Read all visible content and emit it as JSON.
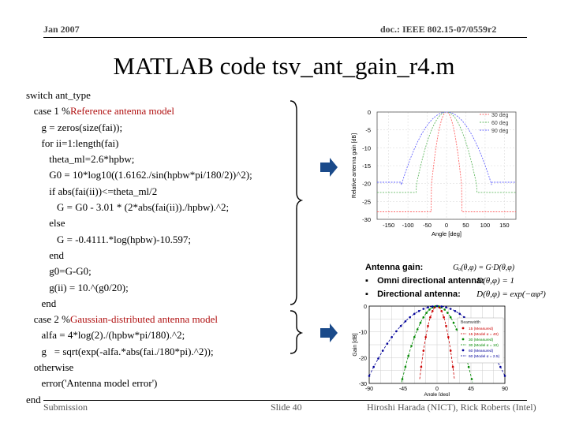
{
  "header": {
    "date": "Jan 2007",
    "doc": "doc.: IEEE 802.15-07/0559r2"
  },
  "title": "MATLAB code tsv_ant_gain_r4.m",
  "code_lines": [
    {
      "text": "switch ant_type",
      "comment": ""
    },
    {
      "text": "   case 1 %",
      "comment": "Reference antenna model"
    },
    {
      "text": "      g = zeros(size(fai));",
      "comment": ""
    },
    {
      "text": "      for ii=1:length(fai)",
      "comment": ""
    },
    {
      "text": "         theta_ml=2.6*hpbw;",
      "comment": ""
    },
    {
      "text": "         G0 = 10*log10((1.6162./sin(hpbw*pi/180/2))^2);",
      "comment": ""
    },
    {
      "text": "         if abs(fai(ii))<=theta_ml/2",
      "comment": ""
    },
    {
      "text": "            G = G0 - 3.01 * (2*abs(fai(ii))./hpbw).^2;",
      "comment": ""
    },
    {
      "text": "         else",
      "comment": ""
    },
    {
      "text": "            G = -0.4111.*log(hpbw)-10.597;",
      "comment": ""
    },
    {
      "text": "         end",
      "comment": ""
    },
    {
      "text": "         g0=G-G0;",
      "comment": ""
    },
    {
      "text": "         g(ii) = 10.^(g0/20);",
      "comment": ""
    },
    {
      "text": "      end",
      "comment": ""
    },
    {
      "text": "   case 2 %",
      "comment": "Gaussian-distributed antenna model"
    },
    {
      "text": "      alfa = 4*log(2)./(hpbw*pi/180).^2;",
      "comment": ""
    },
    {
      "text": "      g   = sqrt(exp(-alfa.*abs(fai./180*pi).^2));",
      "comment": ""
    },
    {
      "text": "   otherwise",
      "comment": ""
    },
    {
      "text": "      error('Antenna model error')",
      "comment": ""
    },
    {
      "text": "end",
      "comment": ""
    }
  ],
  "chart_data": [
    {
      "type": "line",
      "xlabel": "Angle [deg]",
      "ylabel": "Relative antenna gain [dB]",
      "xticks": [
        -150,
        -100,
        -50,
        0,
        50,
        100,
        150
      ],
      "yticks": [
        0,
        -5,
        -10,
        -15,
        -20,
        -25,
        -30
      ],
      "xlim": [
        -180,
        180
      ],
      "ylim": [
        -30,
        0
      ],
      "legend_position": "top-right",
      "series": [
        {
          "name": "30 deg",
          "hpbw": 30,
          "color": "#ff6666"
        },
        {
          "name": "60 deg",
          "hpbw": 60,
          "color": "#66bb66"
        },
        {
          "name": "90 deg",
          "hpbw": 90,
          "color": "#6666ff"
        }
      ]
    },
    {
      "type": "scatter",
      "xlabel": "Angle [deg]",
      "ylabel": "Gain [dB]",
      "xticks": [
        -90,
        -45,
        0,
        45,
        90
      ],
      "yticks": [
        0,
        -10,
        -20,
        -30
      ],
      "xlim": [
        -90,
        90
      ],
      "ylim": [
        -30,
        0
      ],
      "legend_title": "Beamwidth",
      "legend_position": "top-right",
      "series": [
        {
          "name": "15 (Measured)",
          "hpbw": 15,
          "color": "#cc0000"
        },
        {
          "name": "15 (Model α = 40)",
          "hpbw": 15,
          "color": "#cc0000"
        },
        {
          "name": "30 (Measured)",
          "hpbw": 30,
          "color": "#008800"
        },
        {
          "name": "30 (Model α = 10)",
          "hpbw": 30,
          "color": "#008800"
        },
        {
          "name": "60 (Measured)",
          "hpbw": 60,
          "color": "#000099"
        },
        {
          "name": "60 (Model α = 2.5)",
          "hpbw": 60,
          "color": "#000099"
        }
      ]
    }
  ],
  "gain": {
    "label": "Antenna gain:",
    "formula1": "Gₐ(θ,φ) = G·D(θ,φ)",
    "bullet1_label": "Omni directional antenna:",
    "bullet1_formula": "D(θ,φ) = 1",
    "bullet2_label": "Directional antenna:",
    "bullet2_formula": "D(θ,φ) = exp(−αφ²)"
  },
  "footer": {
    "left": "Submission",
    "mid": "Slide 40",
    "right": "Hiroshi Harada (NICT), Rick Roberts (Intel)"
  }
}
